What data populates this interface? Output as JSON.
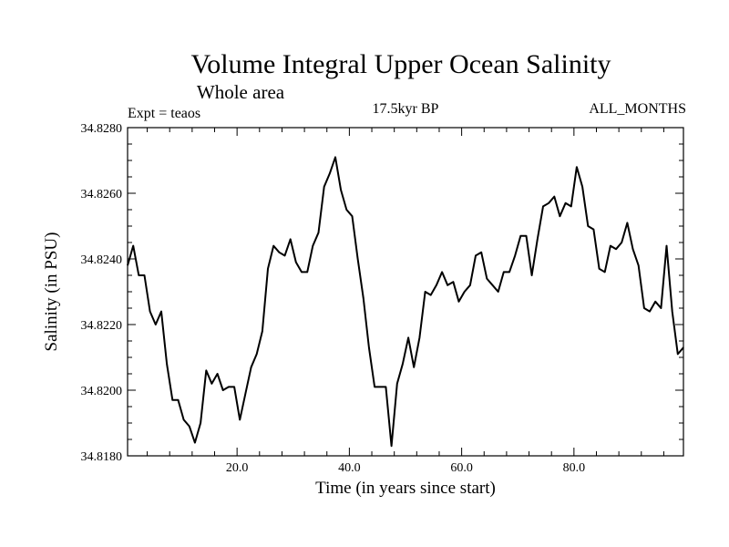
{
  "chart_data": {
    "type": "line",
    "title": "Volume Integral Upper Ocean Salinity",
    "subtitle": "Whole area",
    "left_note": "Expt = teaos",
    "center_note": "17.5kyr BP",
    "right_note": "ALL_MONTHS",
    "xlabel": "Time (in years since start)",
    "ylabel": "Salinity (in PSU)",
    "xlim": [
      0.5,
      99.5
    ],
    "ylim": [
      34.818,
      34.828
    ],
    "xticks": [
      20,
      40,
      60,
      80
    ],
    "xtick_labels": [
      "20.0",
      "40.0",
      "60.0",
      "80.0"
    ],
    "yticks": [
      34.818,
      34.82,
      34.822,
      34.824,
      34.826,
      34.828
    ],
    "ytick_labels": [
      "34.8180",
      "34.8200",
      "34.8220",
      "34.8240",
      "34.8260",
      "34.8280"
    ],
    "series": [
      {
        "name": "salinity",
        "x": [
          0.5,
          1.5,
          2.5,
          3.5,
          4.5,
          5.5,
          6.5,
          7.5,
          8.5,
          9.5,
          10.5,
          11.5,
          12.5,
          13.5,
          14.5,
          15.5,
          16.5,
          17.5,
          18.5,
          19.5,
          20.5,
          21.5,
          22.5,
          23.5,
          24.5,
          25.5,
          26.5,
          27.5,
          28.5,
          29.5,
          30.5,
          31.5,
          32.5,
          33.5,
          34.5,
          35.5,
          36.5,
          37.5,
          38.5,
          39.5,
          40.5,
          41.5,
          42.5,
          43.5,
          44.5,
          45.5,
          46.5,
          47.5,
          48.5,
          49.5,
          50.5,
          51.5,
          52.5,
          53.5,
          54.5,
          55.5,
          56.5,
          57.5,
          58.5,
          59.5,
          60.5,
          61.5,
          62.5,
          63.5,
          64.5,
          65.5,
          66.5,
          67.5,
          68.5,
          69.5,
          70.5,
          71.5,
          72.5,
          73.5,
          74.5,
          75.5,
          76.5,
          77.5,
          78.5,
          79.5,
          80.5,
          81.5,
          82.5,
          83.5,
          84.5,
          85.5,
          86.5,
          87.5,
          88.5,
          89.5,
          90.5,
          91.5,
          92.5,
          93.5,
          94.5,
          95.5,
          96.5,
          97.5,
          98.5,
          99.5
        ],
        "values": [
          34.8238,
          34.8244,
          34.8235,
          34.8235,
          34.8224,
          34.822,
          34.8224,
          34.8208,
          34.8197,
          34.8197,
          34.8191,
          34.8189,
          34.8184,
          34.819,
          34.8206,
          34.8202,
          34.8205,
          34.82,
          34.8201,
          34.8201,
          34.8191,
          34.8199,
          34.8207,
          34.8211,
          34.8218,
          34.8237,
          34.8244,
          34.8242,
          34.8241,
          34.8246,
          34.8239,
          34.8236,
          34.8236,
          34.8244,
          34.8248,
          34.8262,
          34.8266,
          34.8271,
          34.8261,
          34.8255,
          34.8253,
          34.824,
          34.8228,
          34.8213,
          34.8201,
          34.8201,
          34.8201,
          34.8183,
          34.8202,
          34.8208,
          34.8216,
          34.8207,
          34.8216,
          34.823,
          34.8229,
          34.8232,
          34.8236,
          34.8232,
          34.8233,
          34.8227,
          34.823,
          34.8232,
          34.8241,
          34.8242,
          34.8234,
          34.8232,
          34.823,
          34.8236,
          34.8236,
          34.8241,
          34.8247,
          34.8247,
          34.8235,
          34.8246,
          34.8256,
          34.8257,
          34.8259,
          34.8253,
          34.8257,
          34.8256,
          34.8268,
          34.8262,
          34.825,
          34.8249,
          34.8237,
          34.8236,
          34.8244,
          34.8243,
          34.8245,
          34.8251,
          34.8243,
          34.8238,
          34.8225,
          34.8224,
          34.8227,
          34.8225,
          34.8244,
          34.8224,
          34.8211,
          34.8213
        ]
      }
    ],
    "grid": false,
    "line_color": "#000000"
  }
}
